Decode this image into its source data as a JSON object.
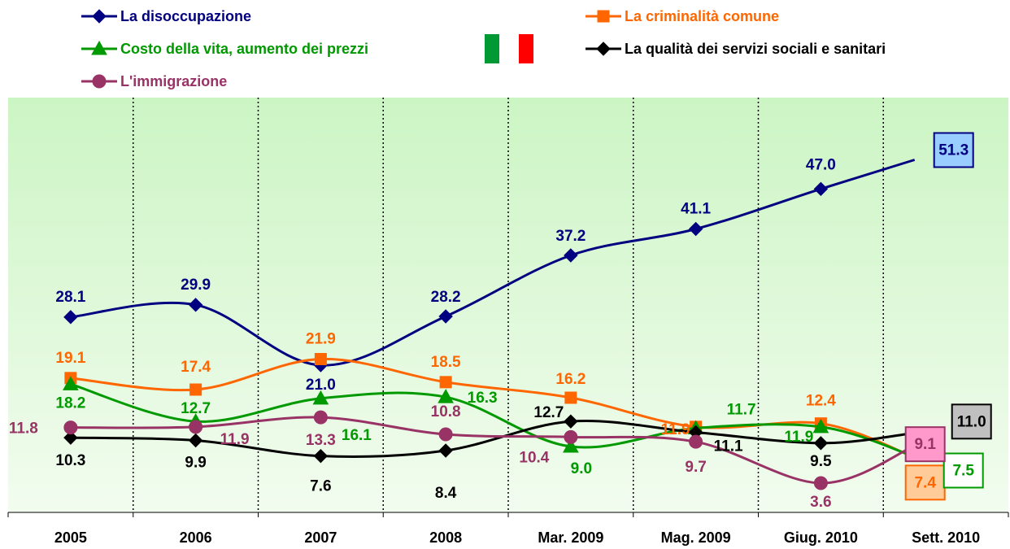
{
  "chart_data": {
    "type": "line",
    "categories": [
      "2005",
      "2006",
      "2007",
      "2008",
      "Mar. 2009",
      "Mag. 2009",
      "Giug. 2010",
      "Sett. 2010"
    ],
    "ylim": [
      0,
      60
    ],
    "grid": false,
    "smooth": true,
    "series": [
      {
        "name": "La disoccupazione",
        "color": "#000080",
        "marker": "diamond",
        "values": [
          28.1,
          29.9,
          21.0,
          28.2,
          37.2,
          41.1,
          47.0,
          51.3
        ],
        "value_labels": [
          "28.1",
          "29.9",
          "21.0",
          "28.2",
          "37.2",
          "41.1",
          "47.0",
          "51.3"
        ]
      },
      {
        "name": "La criminalità comune",
        "color": "#ff6600",
        "marker": "square",
        "values": [
          19.1,
          17.4,
          21.9,
          18.5,
          16.2,
          11.9,
          12.4,
          7.4
        ],
        "value_labels": [
          "19.1",
          "17.4",
          "21.9",
          "18.5",
          "16.2",
          "11.9",
          "12.4",
          "7.4"
        ]
      },
      {
        "name": "Costo della vita, aumento dei prezzi",
        "color": "#009900",
        "marker": "triangle",
        "values": [
          18.2,
          12.7,
          16.1,
          16.3,
          9.0,
          11.7,
          11.9,
          7.5
        ],
        "value_labels": [
          "18.2",
          "12.7",
          "16.1",
          "16.3",
          "9.0",
          "11.7",
          "11.9",
          "7.5"
        ]
      },
      {
        "name": "La qualità dei servizi sociali e sanitari",
        "color": "#000000",
        "marker": "diamond",
        "values": [
          10.3,
          9.9,
          7.6,
          8.4,
          12.7,
          11.1,
          9.5,
          11.0
        ],
        "value_labels": [
          "10.3",
          "9.9",
          "7.6",
          "8.4",
          "12.7",
          "11.1",
          "9.5",
          "11.0"
        ]
      },
      {
        "name": "L'immigrazione",
        "color": "#993366",
        "marker": "circle",
        "values": [
          11.8,
          11.9,
          13.3,
          10.8,
          10.4,
          9.7,
          3.6,
          9.1
        ],
        "value_labels": [
          "11.8",
          "11.9",
          "13.3",
          "10.8",
          "10.4",
          "9.7",
          "3.6",
          "9.1"
        ]
      }
    ]
  }
}
